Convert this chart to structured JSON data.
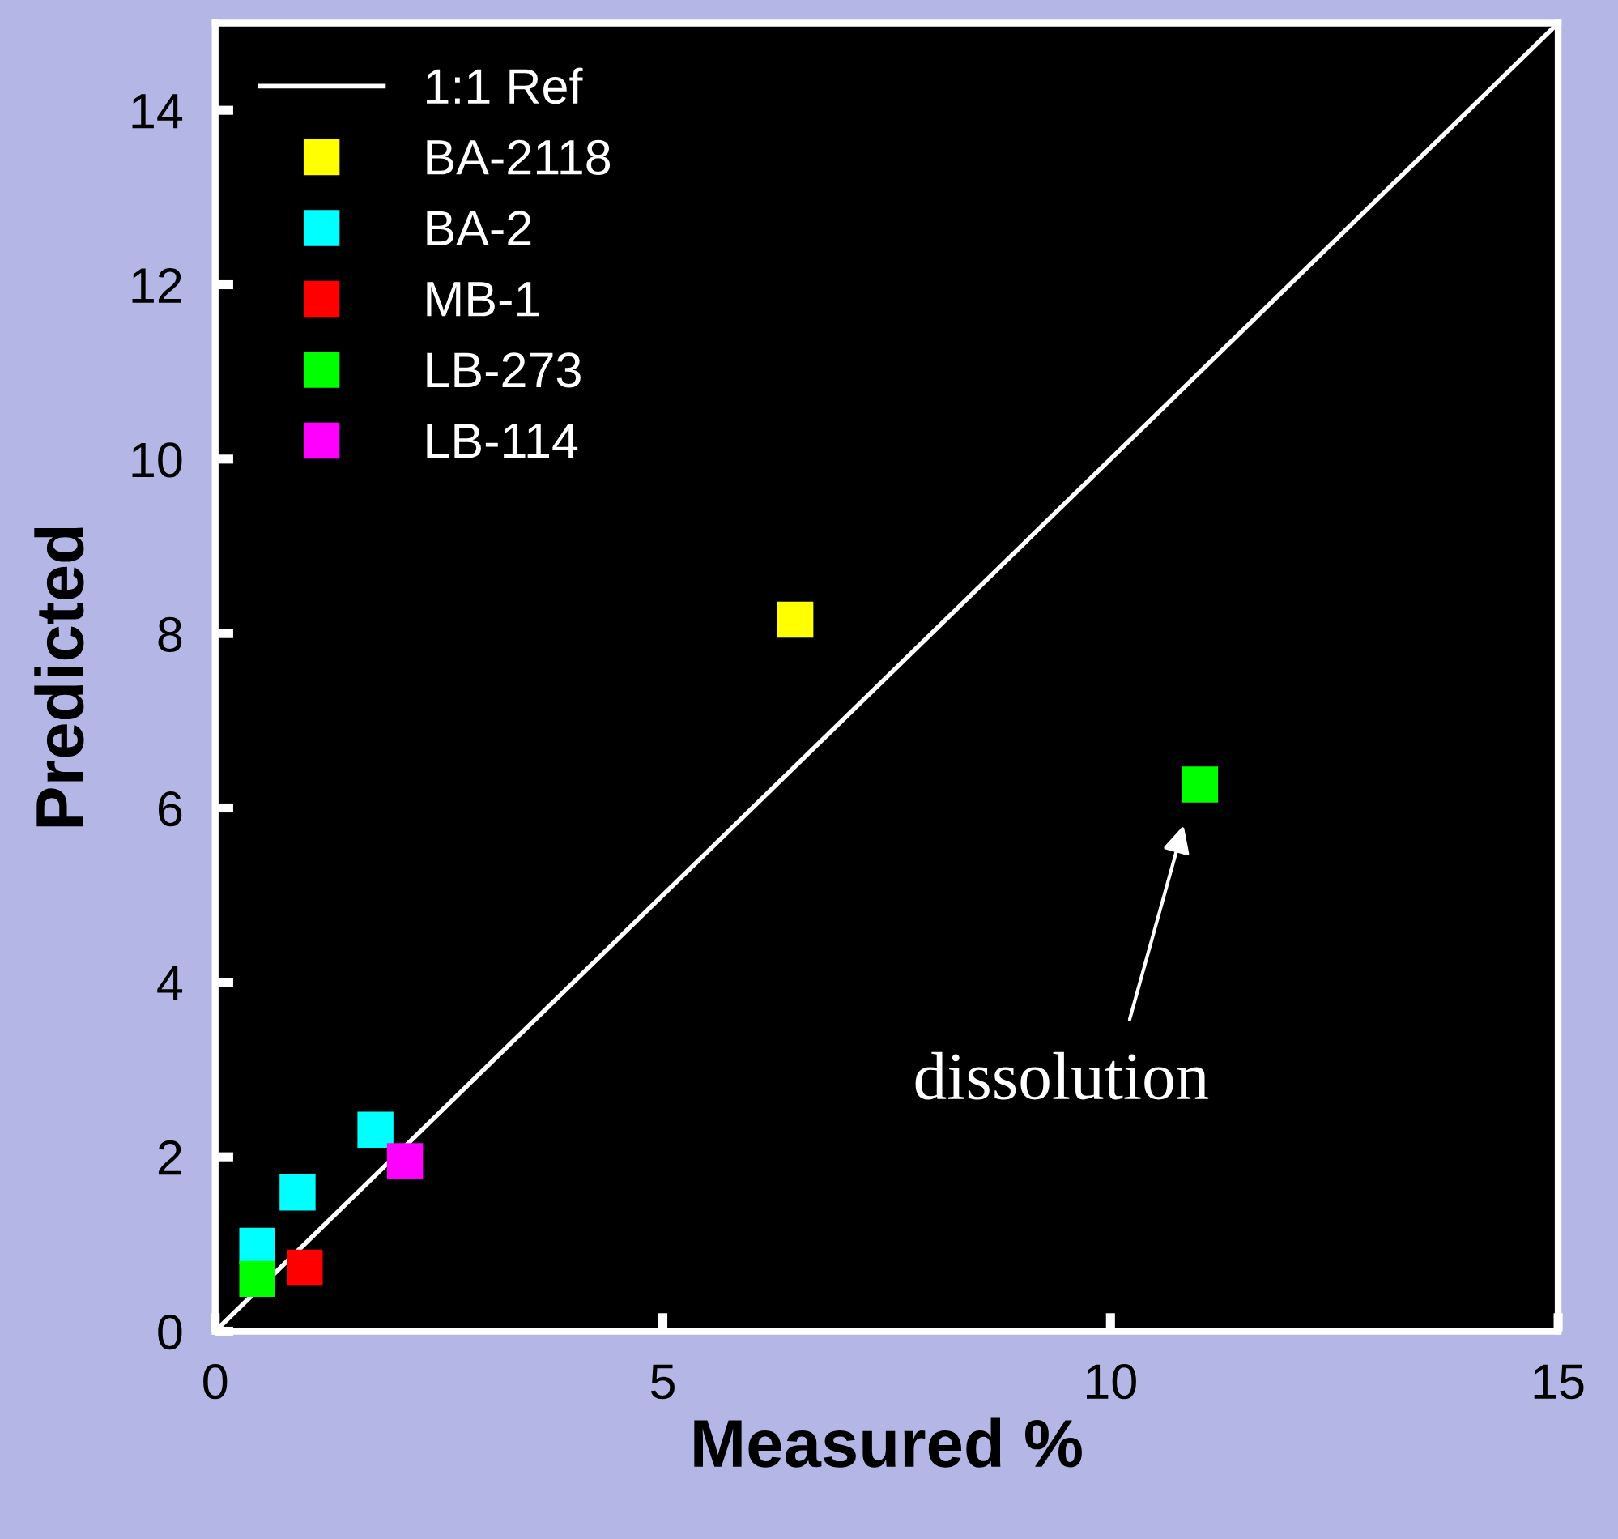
{
  "chart_data": {
    "type": "scatter",
    "xlabel": "Measured %",
    "ylabel": "Predicted",
    "xlim": [
      0,
      15
    ],
    "ylim": [
      0,
      15
    ],
    "xticks": [
      0,
      5,
      10,
      15
    ],
    "yticks": [
      0,
      2,
      4,
      6,
      8,
      10,
      12,
      14
    ],
    "grid": false,
    "legend": "top left",
    "marker": "square",
    "series": [
      {
        "name": "1:1 Ref",
        "type": "line",
        "color": "#ffffff",
        "x": [
          0,
          15
        ],
        "values": [
          0,
          15
        ],
        "marker": "none",
        "line_style": "solid"
      },
      {
        "name": "BA-2118",
        "color": "#ffff00",
        "x": [
          6.48
        ],
        "values": [
          8.16
        ]
      },
      {
        "name": "BA-2",
        "color": "#00ffff",
        "x": [
          0.47,
          0.92,
          1.79
        ],
        "values": [
          0.98,
          1.59,
          2.31
        ]
      },
      {
        "name": "MB-1",
        "color": "#ff0000",
        "x": [
          1.0
        ],
        "values": [
          0.73
        ]
      },
      {
        "name": "LB-273",
        "color": "#00ff00",
        "x": [
          0.47,
          11.0
        ],
        "values": [
          0.6,
          6.27
        ]
      },
      {
        "name": "LB-114",
        "color": "#ff00ff",
        "x": [
          2.12
        ],
        "values": [
          1.95
        ]
      }
    ],
    "annotations": [
      "dissolution"
    ]
  }
}
